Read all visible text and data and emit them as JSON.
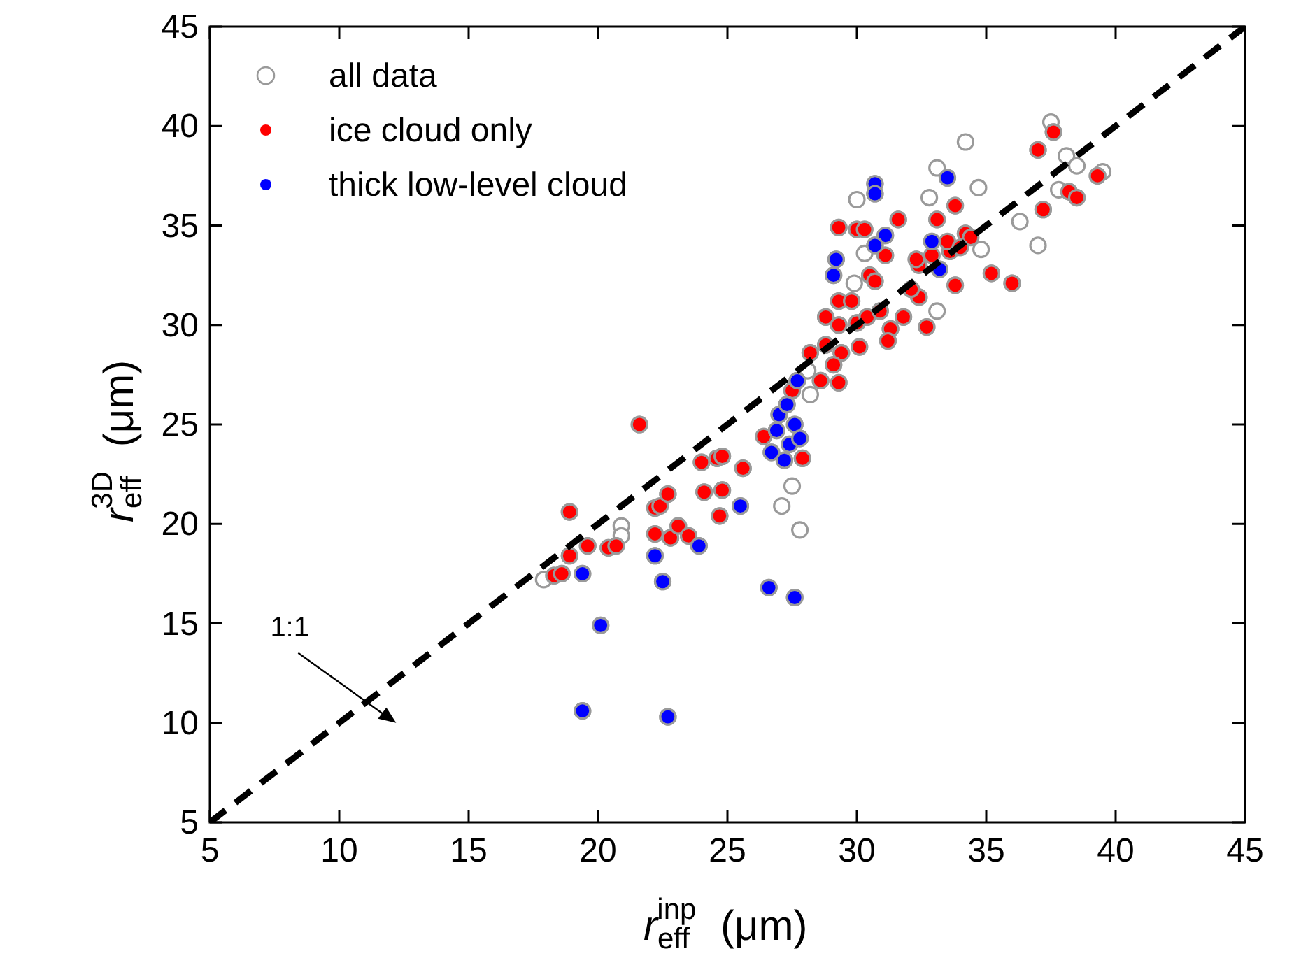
{
  "chart_data": {
    "type": "scatter",
    "xlabel": "r$_{eff}$$^{inp}$ (μm)",
    "ylabel": "r$_{eff}$$^{3D}$ (μm)",
    "xlim": [
      5,
      45
    ],
    "ylim": [
      5,
      45
    ],
    "xticks": [
      5,
      10,
      15,
      20,
      25,
      30,
      35,
      40,
      45
    ],
    "yticks": [
      5,
      10,
      15,
      20,
      25,
      30,
      35,
      40,
      45
    ],
    "grid": false,
    "legend": "top left",
    "marker": "circle",
    "annotations": [
      "1:1"
    ],
    "series": [
      {
        "name": "all data",
        "color": "#ffffff",
        "x": [
          37.5,
          34.2,
          38.1,
          38.5,
          39.5,
          36.3,
          37.0,
          34.7,
          37.8,
          33.1,
          30.0,
          32.8,
          34.8,
          33.1,
          30.3,
          29.9,
          28.1,
          28.2,
          27.8,
          27.1,
          27.5,
          20.9,
          20.9,
          17.9,
          21.6,
          18.9,
          18.3,
          18.6,
          18.9,
          19.6,
          20.4,
          20.7,
          22.2,
          22.7,
          22.2,
          22.8,
          23.1,
          23.5,
          24.0,
          24.1,
          24.6,
          24.8,
          24.8,
          24.7,
          25.6,
          27.9,
          29.3,
          30.0,
          30.3,
          31.6,
          31.1,
          30.5,
          29.3,
          29.8,
          28.8,
          29.3,
          30.0,
          30.4,
          30.9,
          31.3,
          31.8,
          28.8,
          29.4,
          28.2,
          29.1,
          28.6,
          29.3,
          30.1,
          31.2,
          32.4,
          32.1,
          32.7,
          33.1,
          33.8,
          34.2,
          33.8,
          35.2,
          32.3,
          30.7,
          27.5,
          37.6,
          37.0,
          39.3,
          38.2,
          38.5,
          37.2,
          36.0,
          19.4,
          22.7,
          20.1,
          19.4,
          22.2,
          22.5,
          23.9,
          25.5,
          26.6,
          27.6,
          27.0,
          27.3,
          27.6,
          26.9,
          27.4,
          27.8,
          27.2,
          26.7,
          27.7,
          30.7,
          30.7,
          29.2,
          29.1,
          31.1,
          30.7,
          32.9,
          33.5,
          33.2
        ],
        "values": [
          40.2,
          39.2,
          38.5,
          38.0,
          37.7,
          35.2,
          34.0,
          36.9,
          36.8,
          37.9,
          36.3,
          36.4,
          33.8,
          30.7,
          33.6,
          32.1,
          27.7,
          26.5,
          19.7,
          20.9,
          21.9,
          19.9,
          19.4,
          17.2,
          25.0,
          20.6,
          17.4,
          17.5,
          18.4,
          18.9,
          18.8,
          18.9,
          20.8,
          21.5,
          19.5,
          19.3,
          19.9,
          19.4,
          23.1,
          21.6,
          23.3,
          23.4,
          21.7,
          20.4,
          22.8,
          23.3,
          34.9,
          34.8,
          34.8,
          35.3,
          33.5,
          32.5,
          31.2,
          31.2,
          30.4,
          30.0,
          30.1,
          30.4,
          30.7,
          29.8,
          30.4,
          29.0,
          28.6,
          28.6,
          28.0,
          27.2,
          27.1,
          28.9,
          29.2,
          31.4,
          31.8,
          29.9,
          35.3,
          36.0,
          34.6,
          32.0,
          32.6,
          33.3,
          32.2,
          26.7,
          39.7,
          38.8,
          37.5,
          36.7,
          36.4,
          35.8,
          32.1,
          10.6,
          10.3,
          14.9,
          17.5,
          18.4,
          17.1,
          18.9,
          20.9,
          16.8,
          16.3,
          25.5,
          26.0,
          25.0,
          24.7,
          24.0,
          24.3,
          23.2,
          23.6,
          27.2,
          37.1,
          36.6,
          33.3,
          32.5,
          34.5,
          34.0,
          34.2,
          37.4,
          32.8
        ]
      },
      {
        "name": "ice cloud only",
        "color": "#ff0000",
        "x": [
          21.6,
          18.9,
          18.3,
          18.6,
          18.9,
          19.6,
          20.4,
          20.7,
          22.2,
          22.4,
          22.7,
          22.2,
          22.8,
          23.1,
          23.5,
          24.0,
          24.1,
          24.6,
          24.8,
          24.8,
          24.7,
          25.6,
          27.9,
          29.3,
          30.0,
          30.3,
          31.6,
          31.1,
          30.5,
          29.3,
          29.8,
          28.8,
          29.3,
          30.0,
          30.4,
          30.9,
          31.3,
          31.8,
          28.8,
          29.4,
          28.2,
          29.1,
          28.6,
          29.3,
          30.1,
          31.2,
          32.4,
          32.1,
          32.7,
          32.4,
          33.1,
          33.8,
          33.6,
          34.2,
          34.4,
          33.8,
          35.2,
          32.9,
          33.5,
          34.0,
          32.3,
          30.7,
          27.5,
          26.4,
          37.6,
          37.0,
          39.3,
          38.2,
          38.5,
          37.2,
          36.0
        ],
        "values": [
          25.0,
          20.6,
          17.4,
          17.5,
          18.4,
          18.9,
          18.8,
          18.9,
          20.8,
          20.9,
          21.5,
          19.5,
          19.3,
          19.9,
          19.4,
          23.1,
          21.6,
          23.3,
          23.4,
          21.7,
          20.4,
          22.8,
          23.3,
          34.9,
          34.8,
          34.8,
          35.3,
          33.5,
          32.5,
          31.2,
          31.2,
          30.4,
          30.0,
          30.1,
          30.4,
          30.7,
          29.8,
          30.4,
          29.0,
          28.6,
          28.6,
          28.0,
          27.2,
          27.1,
          28.9,
          29.2,
          31.4,
          31.8,
          29.9,
          33.0,
          35.3,
          36.0,
          33.7,
          34.6,
          34.4,
          32.0,
          32.6,
          33.5,
          34.2,
          33.9,
          33.3,
          32.2,
          26.7,
          24.4,
          39.7,
          38.8,
          37.5,
          36.7,
          36.4,
          35.8,
          32.1
        ]
      },
      {
        "name": "thick low-level cloud",
        "color": "#0000ff",
        "x": [
          19.4,
          22.7,
          20.1,
          19.4,
          22.2,
          22.5,
          23.9,
          25.5,
          26.6,
          27.6,
          27.0,
          27.3,
          27.6,
          26.9,
          27.4,
          27.8,
          27.2,
          26.7,
          27.7,
          30.7,
          30.7,
          29.2,
          29.1,
          31.1,
          30.7,
          32.9,
          33.5,
          33.2
        ],
        "values": [
          10.6,
          10.3,
          14.9,
          17.5,
          18.4,
          17.1,
          18.9,
          20.9,
          16.8,
          16.3,
          25.5,
          26.0,
          25.0,
          24.7,
          24.0,
          24.3,
          23.2,
          23.6,
          27.2,
          37.1,
          36.6,
          33.3,
          32.5,
          34.5,
          34.0,
          34.2,
          37.4,
          32.8
        ]
      },
      {
        "type": "line",
        "color": "#000000",
        "line_style": "dashed",
        "marker": "none",
        "x": [
          5,
          45
        ],
        "values": [
          5,
          45
        ]
      }
    ]
  }
}
